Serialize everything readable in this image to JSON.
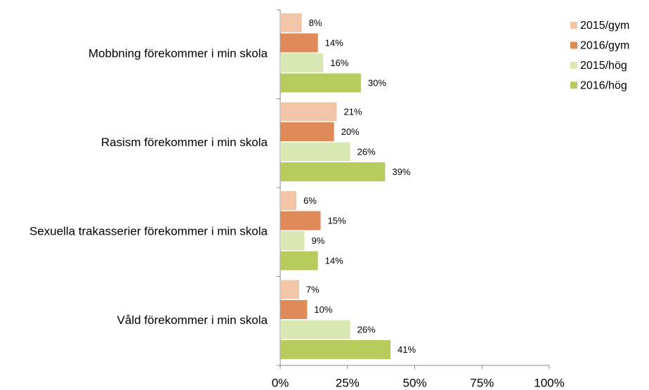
{
  "chart_data": {
    "type": "bar",
    "orientation": "horizontal",
    "categories": [
      "Mobbning förekommer i min skola",
      "Rasism förekommer i min skola",
      "Sexuella trakasserier förekommer i min skola",
      "Våld förekommer i min skola"
    ],
    "series": [
      {
        "name": "2015/gym",
        "color": "#f2c4a8",
        "values": [
          8,
          21,
          6,
          7
        ],
        "value_labels": [
          "8%",
          "21%",
          "6%",
          "7%"
        ]
      },
      {
        "name": "2016/gym",
        "color": "#e08a59",
        "values": [
          14,
          20,
          15,
          10
        ],
        "value_labels": [
          "14%",
          "20%",
          "15%",
          "10%"
        ]
      },
      {
        "name": "2015/hög",
        "color": "#d9e7b2",
        "values": [
          16,
          26,
          9,
          26
        ],
        "value_labels": [
          "16%",
          "26%",
          "9%",
          "26%"
        ]
      },
      {
        "name": "2016/hög",
        "color": "#b6cc5d",
        "values": [
          30,
          39,
          14,
          41
        ],
        "value_labels": [
          "30%",
          "39%",
          "14%",
          "41%"
        ]
      }
    ],
    "xlim": [
      0,
      100
    ],
    "xticks": [
      {
        "value": 0,
        "label": "0%"
      },
      {
        "value": 25,
        "label": "25%"
      },
      {
        "value": 50,
        "label": "50%"
      },
      {
        "value": 75,
        "label": "75%"
      },
      {
        "value": 100,
        "label": "100%"
      }
    ],
    "legend": "top-right"
  }
}
